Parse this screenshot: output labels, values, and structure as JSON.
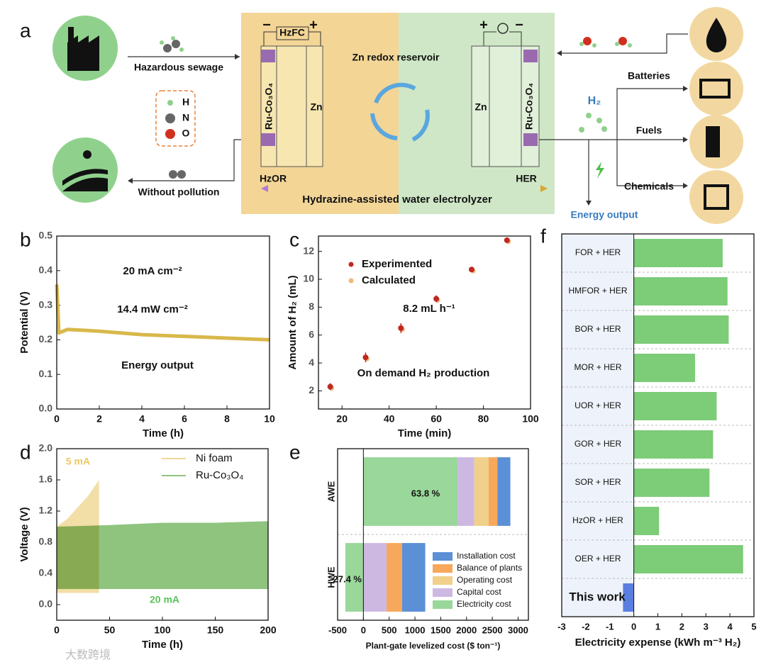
{
  "panel_labels": [
    "a",
    "b",
    "c",
    "d",
    "e",
    "f"
  ],
  "watermark": "大数跨境",
  "diagram": {
    "inputs": [
      "Hazardous sewage",
      "Without pollution"
    ],
    "legend": [
      "H",
      "N",
      "O"
    ],
    "fuel_cell": "HzFC",
    "signs": [
      "−",
      "+",
      "+",
      "−"
    ],
    "reservoir": "Zn redox reservoir",
    "electrode": "Ru-Co₃O₄",
    "metal": "Zn",
    "anode": "HzOR",
    "cathode": "HER",
    "system": "Hydrazine-assisted water electrolyzer",
    "product": "H₂",
    "uses": [
      "Batteries",
      "Fuels",
      "Chemicals"
    ],
    "output": "Energy output"
  },
  "chart_data": [
    {
      "type": "line",
      "xlabel": "Time (h)",
      "ylabel": "Potential (V)",
      "xlim": [
        0,
        10
      ],
      "ylim": [
        0,
        0.5
      ],
      "xticks": [
        0,
        2,
        4,
        6,
        8,
        10
      ],
      "yticks": [
        {
          "value": 0,
          "label": "0.0"
        },
        0.1,
        0.2,
        0.3,
        0.4,
        0.5
      ],
      "x": [
        0,
        0.1,
        0.5,
        2,
        4,
        6,
        8,
        10
      ],
      "values": [
        0.36,
        0.22,
        0.23,
        0.225,
        0.215,
        0.21,
        0.205,
        0.2
      ],
      "color": "#d8b84a",
      "annotations": [
        "20 mA cm⁻²",
        "14.4 mW cm⁻²",
        "Energy output"
      ]
    },
    {
      "type": "scatter",
      "xlabel": "Time (min)",
      "ylabel": "Amount of H₂ (mL)",
      "xlim": [
        10,
        100
      ],
      "ylim": [
        0.7,
        13.1
      ],
      "xticks": [
        20,
        40,
        60,
        80,
        100
      ],
      "yticks": [
        2,
        4,
        6,
        8,
        10,
        12
      ],
      "x": [
        15,
        30,
        45,
        60,
        75,
        90
      ],
      "series": [
        {
          "name": "Experimented",
          "color": "#c0281e",
          "values": [
            2.3,
            4.4,
            6.5,
            8.6,
            10.7,
            12.8
          ],
          "errors": [
            0.25,
            0.35,
            0.35,
            0.25,
            0.1,
            0.1
          ]
        },
        {
          "name": "Calculated",
          "color": "#f0b878",
          "values": [
            2.2,
            4.3,
            6.4,
            8.5,
            10.6,
            12.7
          ]
        }
      ],
      "annotations": [
        "8.2 mL h⁻¹",
        "On demand H₂ production"
      ]
    },
    {
      "type": "area",
      "xlabel": "Time (h)",
      "ylabel": "Voltage (V)",
      "xlim": [
        0,
        200
      ],
      "ylim": [
        -0.2,
        2.0
      ],
      "xticks": [
        0,
        50,
        100,
        150,
        200
      ],
      "yticks": [
        {
          "value": 0,
          "label": "0.0"
        },
        0.4,
        0.8,
        1.2,
        1.6,
        {
          "value": 2,
          "label": "2.0"
        }
      ],
      "series": [
        {
          "name": "Ni foam",
          "color": "#f0d898",
          "x": [
            0,
            10,
            20,
            30,
            40
          ],
          "values": [
            1.0,
            1.1,
            1.25,
            1.4,
            1.6
          ],
          "lower": [
            0.15,
            0.15,
            0.15,
            0.15,
            0.15
          ]
        },
        {
          "name": "Ru-Co₃O₄",
          "color": "#8fc47f",
          "x": [
            0,
            50,
            100,
            150,
            200
          ],
          "values": [
            1.0,
            1.02,
            1.05,
            1.05,
            1.07
          ],
          "lower": [
            0.2,
            0.2,
            0.2,
            0.2,
            0.2
          ]
        }
      ],
      "annotations": [
        "5 mA",
        "20 mA"
      ]
    },
    {
      "type": "stacked_bar",
      "orientation": "horizontal",
      "xlabel": "Plant-gate levelized cost ($ ton⁻¹)",
      "xlim": [
        -500,
        3200
      ],
      "xticks": [
        -500,
        0,
        500,
        1000,
        1500,
        2000,
        2500,
        3000
      ],
      "categories": [
        "AWE",
        "HWE"
      ],
      "series": [
        {
          "name": "Electricity cost",
          "color": "#9ad79a",
          "values": [
            1830,
            -350
          ]
        },
        {
          "name": "Capital cost",
          "color": "#cdb8e2",
          "values": [
            320,
            450
          ]
        },
        {
          "name": "Operating cost",
          "color": "#f0d08a",
          "values": [
            280,
            0
          ]
        },
        {
          "name": "Balance of plants",
          "color": "#f7a85a",
          "values": [
            170,
            300
          ]
        },
        {
          "name": "Installation cost",
          "color": "#5b8fd6",
          "values": [
            250,
            450
          ]
        }
      ],
      "annotations": [
        "63.8 %",
        "-27.4 %"
      ]
    },
    {
      "type": "bar",
      "orientation": "horizontal",
      "xlabel": "Electricity expense (kWh m⁻³ H₂)",
      "xlim": [
        -3,
        5
      ],
      "xticks": [
        -3,
        -2,
        -1,
        0,
        1,
        2,
        3,
        4,
        5
      ],
      "categories": [
        "FOR + HER",
        "HMFOR + HER",
        "BOR + HER",
        "MOR + HER",
        "UOR + HER",
        "GOR + HER",
        "SOR + HER",
        "HzOR + HER",
        "OER + HER",
        "This work"
      ],
      "values": [
        3.7,
        3.9,
        3.95,
        2.55,
        3.45,
        3.3,
        3.15,
        1.05,
        4.55,
        -0.45
      ],
      "colors": [
        "#7ccc78",
        "#7ccc78",
        "#7ccc78",
        "#7ccc78",
        "#7ccc78",
        "#7ccc78",
        "#7ccc78",
        "#7ccc78",
        "#7ccc78",
        "#5b7fe0"
      ]
    }
  ]
}
